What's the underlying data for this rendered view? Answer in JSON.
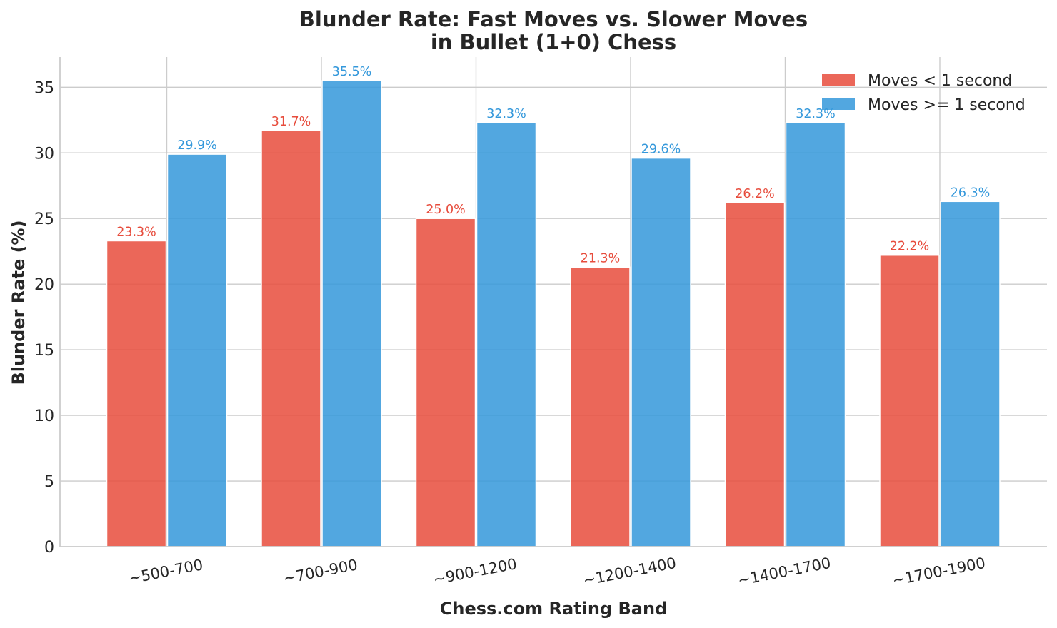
{
  "chart_data": {
    "type": "bar",
    "title": [
      "Blunder Rate: Fast Moves vs. Slower Moves",
      "in Bullet (1+0) Chess"
    ],
    "xlabel": "Chess.com Rating Band",
    "ylabel": "Blunder Rate (%)",
    "categories": [
      "~500-700",
      "~700-900",
      "~900-1200",
      "~1200-1400",
      "~1400-1700",
      "~1700-1900"
    ],
    "ylim": [
      0,
      37.3
    ],
    "yticks": [
      0,
      5,
      10,
      15,
      20,
      25,
      30,
      35
    ],
    "grid": true,
    "legend_position": "top-right",
    "series": [
      {
        "name": "Moves < 1 second",
        "color": "#e74c3c",
        "values": [
          23.3,
          31.7,
          25.0,
          21.3,
          26.2,
          22.2
        ],
        "labels": [
          "23.3%",
          "31.7%",
          "25.0%",
          "21.3%",
          "26.2%",
          "22.2%"
        ]
      },
      {
        "name": "Moves >= 1 second",
        "color": "#3498db",
        "values": [
          29.9,
          35.5,
          32.3,
          29.6,
          32.3,
          26.3
        ],
        "labels": [
          "29.9%",
          "35.5%",
          "32.3%",
          "29.6%",
          "32.3%",
          "26.3%"
        ]
      }
    ]
  }
}
